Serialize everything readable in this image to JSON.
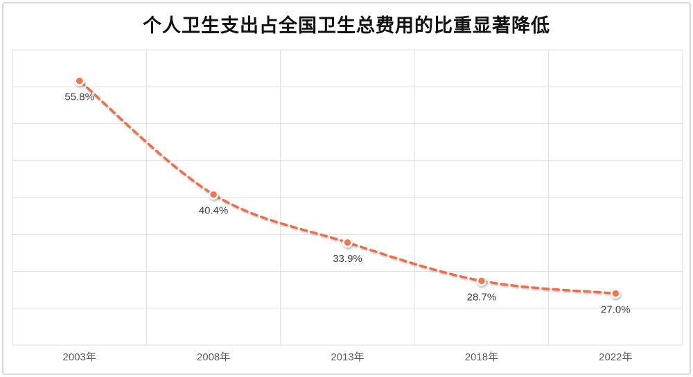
{
  "chart_data": {
    "type": "line",
    "title": "个人卫生支出占全国卫生总费用的比重显著降低",
    "categories": [
      "2003年",
      "2008年",
      "2013年",
      "2018年",
      "2022年"
    ],
    "values": [
      55.8,
      40.4,
      33.9,
      28.7,
      27.0
    ],
    "data_labels": [
      "55.8%",
      "40.4%",
      "33.9%",
      "28.7%",
      "27.0%"
    ],
    "xlabel": "",
    "ylabel": "",
    "ylim": [
      20,
      60
    ],
    "y_grid_step": 5,
    "grid": true,
    "legend": false,
    "y_axis_labels_visible": false,
    "line_style": "dashed-smooth",
    "marker": "circle",
    "colors": {
      "line": "#f26d44",
      "marker_fill": "#f4764e",
      "marker_ring": "#ffffff",
      "gridline": "#dedede",
      "plot_border": "#dedede",
      "data_label": "#404040",
      "axis_label": "#595959",
      "title": "#111111",
      "chart_border": "#d8d8d8",
      "background": "#ffffff"
    }
  }
}
